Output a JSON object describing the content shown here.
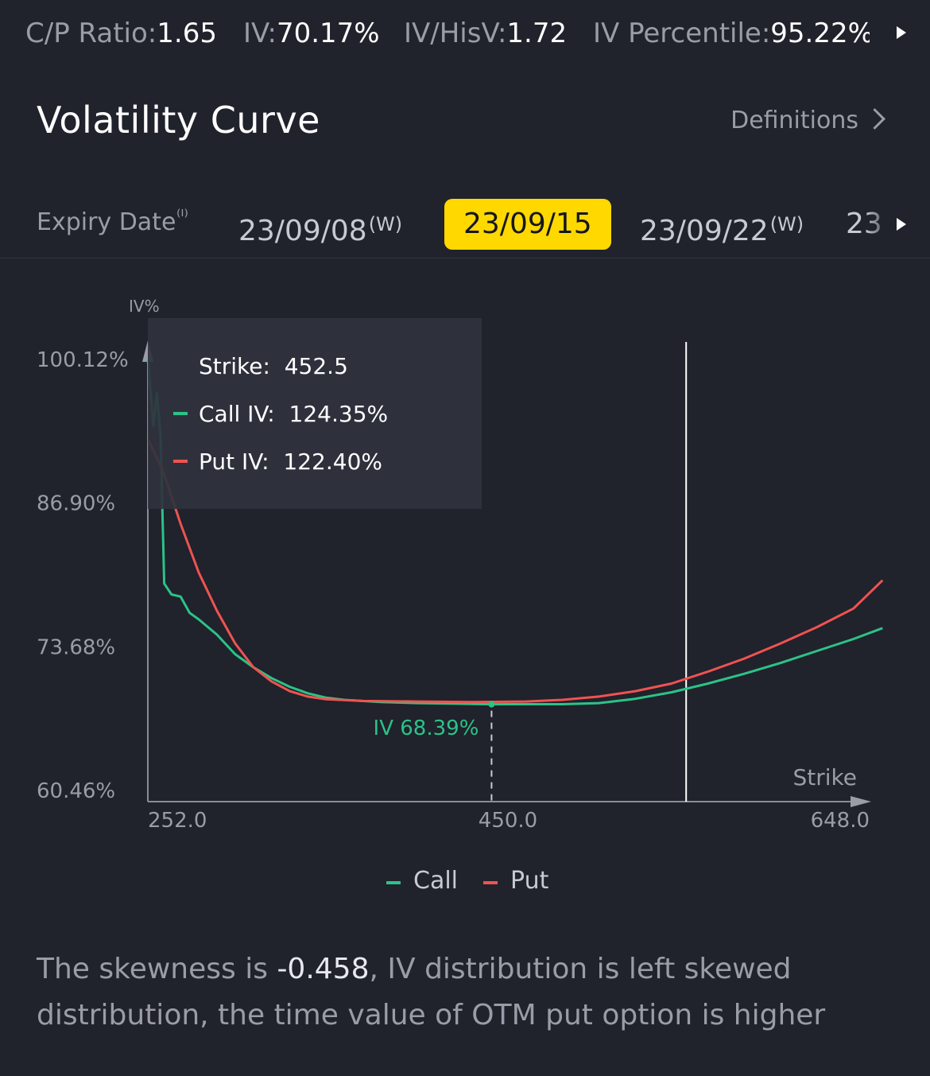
{
  "stats": [
    {
      "key": "C/P Ratio:",
      "value": "1.65"
    },
    {
      "key": "IV:",
      "value": "70.17%"
    },
    {
      "key": "IV/HisV:",
      "value": "1.72"
    },
    {
      "key": "IV Percentile:",
      "value": "95.22%"
    }
  ],
  "header": {
    "title": "Volatility Curve",
    "definitions": "Definitions"
  },
  "expiry": {
    "label": "Expiry Date",
    "info_mark": "⁽ᴵ⁾",
    "dates": [
      {
        "label": "23/09/08",
        "tag": "(W)",
        "active": false
      },
      {
        "label": "23/09/15",
        "tag": "",
        "active": true
      },
      {
        "label": "23/09/22",
        "tag": "(W)",
        "active": false
      },
      {
        "label": "23",
        "tag": "",
        "active": false
      }
    ]
  },
  "colors": {
    "call": "#2bc387",
    "put": "#ef5350",
    "highlight": "#ffd800"
  },
  "tooltip": {
    "strike_label": "Strike:",
    "strike_value": "452.5",
    "call_label": "Call IV:",
    "call_value": "124.35%",
    "put_label": "Put IV:",
    "put_value": "122.40%"
  },
  "chart_data": {
    "type": "line",
    "ylabel": "IV%",
    "xlabel": "Strike",
    "x_ticks": [
      "252.0",
      "450.0",
      "648.0"
    ],
    "y_ticks": [
      "100.12%",
      "86.90%",
      "73.68%",
      "60.46%"
    ],
    "xlim": [
      252,
      648
    ],
    "ylim": [
      60.46,
      100.12
    ],
    "min_marker": {
      "x": 441,
      "label": "IV 68.39%"
    },
    "crosshair_x": 548,
    "series": [
      {
        "name": "Call",
        "color": "#2bc387",
        "points": [
          [
            252,
            100.1
          ],
          [
            255,
            94.0
          ],
          [
            257,
            97.0
          ],
          [
            259,
            93.0
          ],
          [
            261,
            79.5
          ],
          [
            265,
            78.5
          ],
          [
            270,
            78.3
          ],
          [
            275,
            76.8
          ],
          [
            280,
            76.2
          ],
          [
            290,
            74.8
          ],
          [
            300,
            73.0
          ],
          [
            310,
            71.8
          ],
          [
            320,
            70.8
          ],
          [
            330,
            70.0
          ],
          [
            340,
            69.4
          ],
          [
            350,
            69.0
          ],
          [
            360,
            68.8
          ],
          [
            380,
            68.6
          ],
          [
            400,
            68.5
          ],
          [
            420,
            68.45
          ],
          [
            441,
            68.39
          ],
          [
            460,
            68.4
          ],
          [
            480,
            68.4
          ],
          [
            500,
            68.5
          ],
          [
            520,
            68.9
          ],
          [
            540,
            69.5
          ],
          [
            560,
            70.3
          ],
          [
            580,
            71.2
          ],
          [
            600,
            72.2
          ],
          [
            620,
            73.3
          ],
          [
            640,
            74.4
          ],
          [
            656,
            75.4
          ]
        ]
      },
      {
        "name": "Put",
        "color": "#ef5350",
        "points": [
          [
            252,
            92.8
          ],
          [
            260,
            90.0
          ],
          [
            270,
            85.0
          ],
          [
            280,
            80.5
          ],
          [
            290,
            77.0
          ],
          [
            300,
            74.0
          ],
          [
            310,
            71.8
          ],
          [
            320,
            70.5
          ],
          [
            330,
            69.6
          ],
          [
            340,
            69.1
          ],
          [
            350,
            68.85
          ],
          [
            370,
            68.7
          ],
          [
            400,
            68.65
          ],
          [
            430,
            68.6
          ],
          [
            460,
            68.65
          ],
          [
            480,
            68.8
          ],
          [
            500,
            69.1
          ],
          [
            520,
            69.6
          ],
          [
            540,
            70.3
          ],
          [
            560,
            71.4
          ],
          [
            580,
            72.6
          ],
          [
            600,
            74.0
          ],
          [
            620,
            75.5
          ],
          [
            640,
            77.2
          ],
          [
            656,
            79.8
          ]
        ]
      }
    ]
  },
  "legend": {
    "call": "Call",
    "put": "Put"
  },
  "description": {
    "prefix": "The skewness is ",
    "value": "-0.458",
    "suffix": ", IV distribution is left  skewed distribution, the time value of OTM put option is higher"
  }
}
